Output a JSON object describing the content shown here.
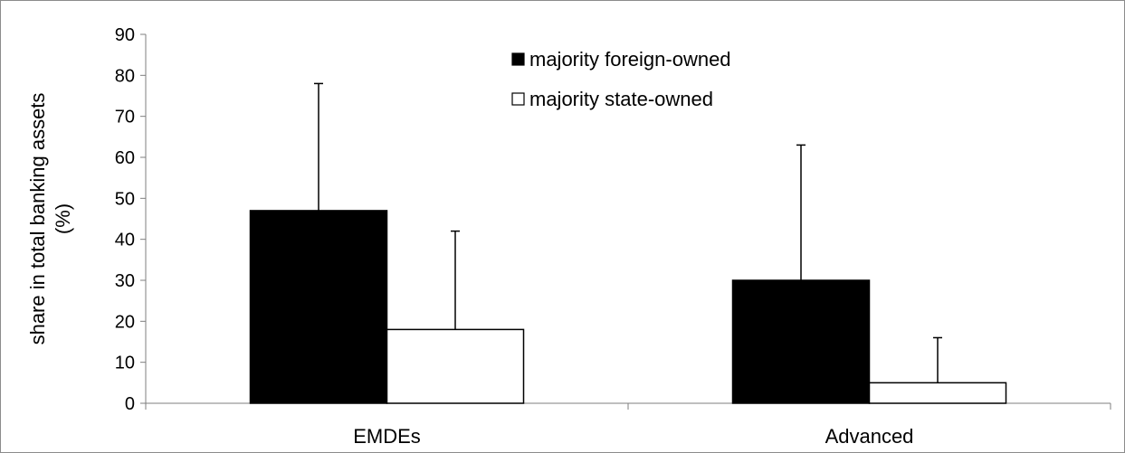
{
  "chart_data": {
    "type": "bar",
    "title": "",
    "xlabel": "",
    "ylabel": [
      "share in total banking assets",
      "(%)"
    ],
    "categories": [
      "EMDEs",
      "Advanced"
    ],
    "series": [
      {
        "name": "majority foreign-owned",
        "color": "#000000",
        "values": [
          47,
          30
        ],
        "error_upper": [
          31,
          33
        ]
      },
      {
        "name": "majority state-owned",
        "color": "#ffffff",
        "values": [
          18,
          5
        ],
        "error_upper": [
          24,
          11
        ]
      }
    ],
    "ylim": [
      0,
      90
    ],
    "yticks": [
      0,
      10,
      20,
      30,
      40,
      50,
      60,
      70,
      80,
      90
    ],
    "grid": false,
    "legend_position": "top-center",
    "error_bars": "upper only"
  }
}
